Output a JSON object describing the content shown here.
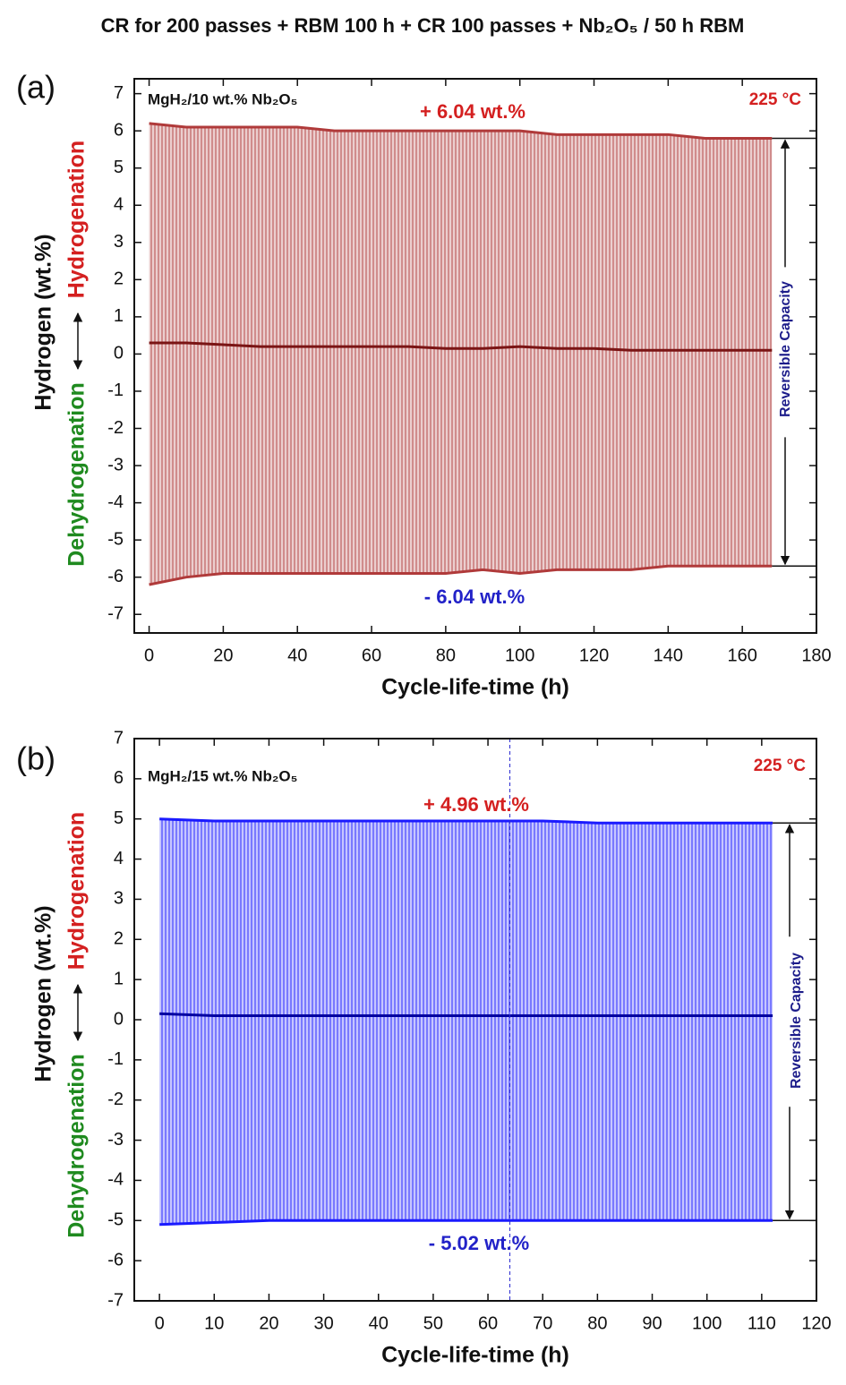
{
  "title": "CR for 200 passes + RBM 100 h + CR 100 passes + Nb₂O₅ / 50 h RBM",
  "chart_data": [
    {
      "type": "line",
      "panel_label": "(a)",
      "sample_label": "MgH₂/10 wt.% Nb₂O₅",
      "temperature": "225 °C",
      "upper_label": "+ 6.04 wt.%",
      "lower_label": "- 6.04 wt.%",
      "capacity_label": "Reversible Capacity",
      "x_label": "Cycle-life-time (h)",
      "y_label": "Hydrogen (wt.%)",
      "y_label_up": "Hydrogenation",
      "y_label_down": "Dehydrogenation",
      "x": [
        0,
        10,
        20,
        30,
        40,
        50,
        60,
        70,
        80,
        90,
        100,
        110,
        120,
        130,
        140,
        150,
        160,
        168
      ],
      "series": [
        {
          "color": "#b03a3a",
          "values": [
            6.2,
            6.1,
            6.1,
            6.1,
            6.1,
            6.0,
            6.0,
            6.0,
            6.0,
            6.0,
            6.0,
            5.9,
            5.9,
            5.9,
            5.9,
            5.8,
            5.8,
            5.8
          ]
        },
        {
          "color": "#7a1414",
          "values": [
            0.3,
            0.3,
            0.25,
            0.2,
            0.2,
            0.2,
            0.2,
            0.2,
            0.15,
            0.15,
            0.2,
            0.15,
            0.15,
            0.1,
            0.1,
            0.1,
            0.1,
            0.1
          ]
        },
        {
          "color": "#b03a3a",
          "values": [
            -6.2,
            -6.0,
            -5.9,
            -5.9,
            -5.9,
            -5.9,
            -5.9,
            -5.9,
            -5.9,
            -5.8,
            -5.9,
            -5.8,
            -5.8,
            -5.8,
            -5.7,
            -5.7,
            -5.7,
            -5.7
          ]
        }
      ],
      "xlim": [
        -4,
        180
      ],
      "xticks": [
        0,
        20,
        40,
        60,
        80,
        100,
        120,
        140,
        160,
        180
      ],
      "ylim": [
        -7.5,
        7.4
      ],
      "yticks": [
        -7,
        -6,
        -5,
        -4,
        -3,
        -2,
        -1,
        0,
        1,
        2,
        3,
        4,
        5,
        6,
        7
      ]
    },
    {
      "type": "line",
      "panel_label": "(b)",
      "sample_label": "MgH₂/15 wt.% Nb₂O₅",
      "temperature": "225 °C",
      "upper_label": "+ 4.96 wt.%",
      "lower_label": "- 5.02 wt.%",
      "capacity_label": "Reversible Capacity",
      "x_label": "Cycle-life-time (h)",
      "y_label": "Hydrogen (wt.%)",
      "y_label_up": "Hydrogenation",
      "y_label_down": "Dehydrogenation",
      "x": [
        0,
        10,
        20,
        30,
        40,
        50,
        60,
        70,
        80,
        90,
        100,
        105,
        110,
        112
      ],
      "series": [
        {
          "color": "#1a1aff",
          "values": [
            5.0,
            4.95,
            4.95,
            4.95,
            4.95,
            4.95,
            4.95,
            4.95,
            4.9,
            4.9,
            4.9,
            4.9,
            4.9,
            4.9
          ]
        },
        {
          "color": "#0000a0",
          "values": [
            0.15,
            0.1,
            0.1,
            0.1,
            0.1,
            0.1,
            0.1,
            0.1,
            0.1,
            0.1,
            0.1,
            0.1,
            0.1,
            0.1
          ]
        },
        {
          "color": "#1a1aff",
          "values": [
            -5.1,
            -5.05,
            -5.0,
            -5.0,
            -5.0,
            -5.0,
            -5.0,
            -5.0,
            -5.0,
            -5.0,
            -5.0,
            -5.0,
            -5.0,
            -5.0
          ]
        }
      ],
      "vline_x": 64,
      "xlim": [
        -4.6,
        120
      ],
      "xticks": [
        0,
        10,
        20,
        30,
        40,
        50,
        60,
        70,
        80,
        90,
        100,
        110,
        120
      ],
      "ylim": [
        -7,
        7
      ],
      "yticks": [
        -7,
        -6,
        -5,
        -4,
        -3,
        -2,
        -1,
        0,
        1,
        2,
        3,
        4,
        5,
        6,
        7
      ]
    }
  ]
}
